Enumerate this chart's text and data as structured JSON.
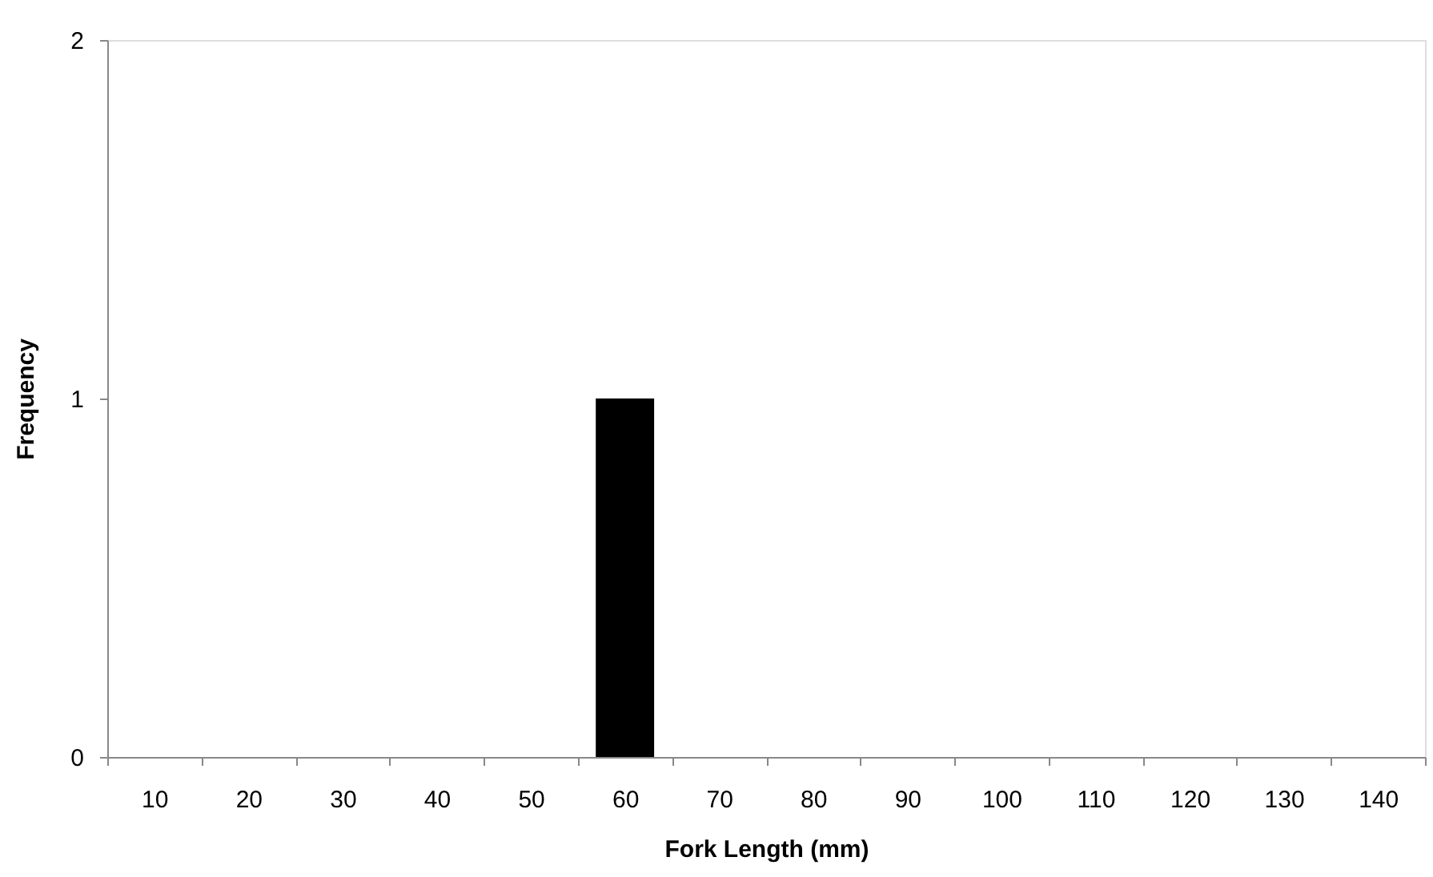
{
  "chart_data": {
    "type": "bar",
    "xlabel": "Fork Length (mm)",
    "ylabel": "Frequency",
    "categories": [
      "10",
      "20",
      "30",
      "40",
      "50",
      "60",
      "70",
      "80",
      "90",
      "100",
      "110",
      "120",
      "130",
      "140"
    ],
    "values": [
      0,
      0,
      0,
      0,
      0,
      1,
      0,
      0,
      0,
      0,
      0,
      0,
      0,
      0
    ],
    "color": "#000000",
    "ylim": [
      0,
      2
    ],
    "yticks": [
      0,
      1,
      2
    ],
    "grid": false
  }
}
